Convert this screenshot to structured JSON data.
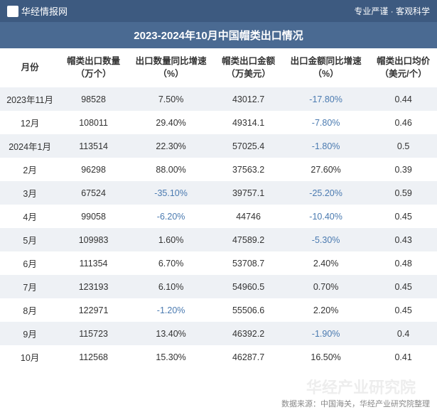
{
  "header": {
    "site_name": "华经情报网",
    "tagline": "专业严谨 · 客观科学"
  },
  "title": "2023-2024年10月中国帽类出口情况",
  "table": {
    "columns": [
      "月份",
      "帽类出口数量\n（万个）",
      "出口数量同比增速\n（%）",
      "帽类出口金额\n（万美元）",
      "出口金额同比增速\n（%）",
      "帽类出口均价\n（美元/个）"
    ],
    "rows": [
      {
        "month": "2023年11月",
        "qty": "98528",
        "qty_growth": "7.50%",
        "qty_neg": false,
        "amount": "43012.7",
        "amt_growth": "-17.80%",
        "amt_neg": true,
        "price": "0.44"
      },
      {
        "month": "12月",
        "qty": "108011",
        "qty_growth": "29.40%",
        "qty_neg": false,
        "amount": "49314.1",
        "amt_growth": "-7.80%",
        "amt_neg": true,
        "price": "0.46"
      },
      {
        "month": "2024年1月",
        "qty": "113514",
        "qty_growth": "22.30%",
        "qty_neg": false,
        "amount": "57025.4",
        "amt_growth": "-1.80%",
        "amt_neg": true,
        "price": "0.5"
      },
      {
        "month": "2月",
        "qty": "96298",
        "qty_growth": "88.00%",
        "qty_neg": false,
        "amount": "37563.2",
        "amt_growth": "27.60%",
        "amt_neg": false,
        "price": "0.39"
      },
      {
        "month": "3月",
        "qty": "67524",
        "qty_growth": "-35.10%",
        "qty_neg": true,
        "amount": "39757.1",
        "amt_growth": "-25.20%",
        "amt_neg": true,
        "price": "0.59"
      },
      {
        "month": "4月",
        "qty": "99058",
        "qty_growth": "-6.20%",
        "qty_neg": true,
        "amount": "44746",
        "amt_growth": "-10.40%",
        "amt_neg": true,
        "price": "0.45"
      },
      {
        "month": "5月",
        "qty": "109983",
        "qty_growth": "1.60%",
        "qty_neg": false,
        "amount": "47589.2",
        "amt_growth": "-5.30%",
        "amt_neg": true,
        "price": "0.43"
      },
      {
        "month": "6月",
        "qty": "111354",
        "qty_growth": "6.70%",
        "qty_neg": false,
        "amount": "53708.7",
        "amt_growth": "2.40%",
        "amt_neg": false,
        "price": "0.48"
      },
      {
        "month": "7月",
        "qty": "123193",
        "qty_growth": "6.10%",
        "qty_neg": false,
        "amount": "54960.5",
        "amt_growth": "0.70%",
        "amt_neg": false,
        "price": "0.45"
      },
      {
        "month": "8月",
        "qty": "122971",
        "qty_growth": "-1.20%",
        "qty_neg": true,
        "amount": "55506.6",
        "amt_growth": "2.20%",
        "amt_neg": false,
        "price": "0.45"
      },
      {
        "month": "9月",
        "qty": "115723",
        "qty_growth": "13.40%",
        "qty_neg": false,
        "amount": "46392.2",
        "amt_growth": "-1.90%",
        "amt_neg": true,
        "price": "0.4"
      },
      {
        "month": "10月",
        "qty": "112568",
        "qty_growth": "15.30%",
        "qty_neg": false,
        "amount": "46287.7",
        "amt_growth": "16.50%",
        "amt_neg": false,
        "price": "0.41"
      }
    ]
  },
  "footer": {
    "source": "数据来源：中国海关，华经产业研究院整理"
  },
  "watermark": "华经产业研究院",
  "colors": {
    "header_bg": "#3d5a80",
    "title_bg": "#4a6a92",
    "stripe_bg": "#eef1f5",
    "negative_color": "#4a7ab0",
    "text_color": "#333333"
  }
}
